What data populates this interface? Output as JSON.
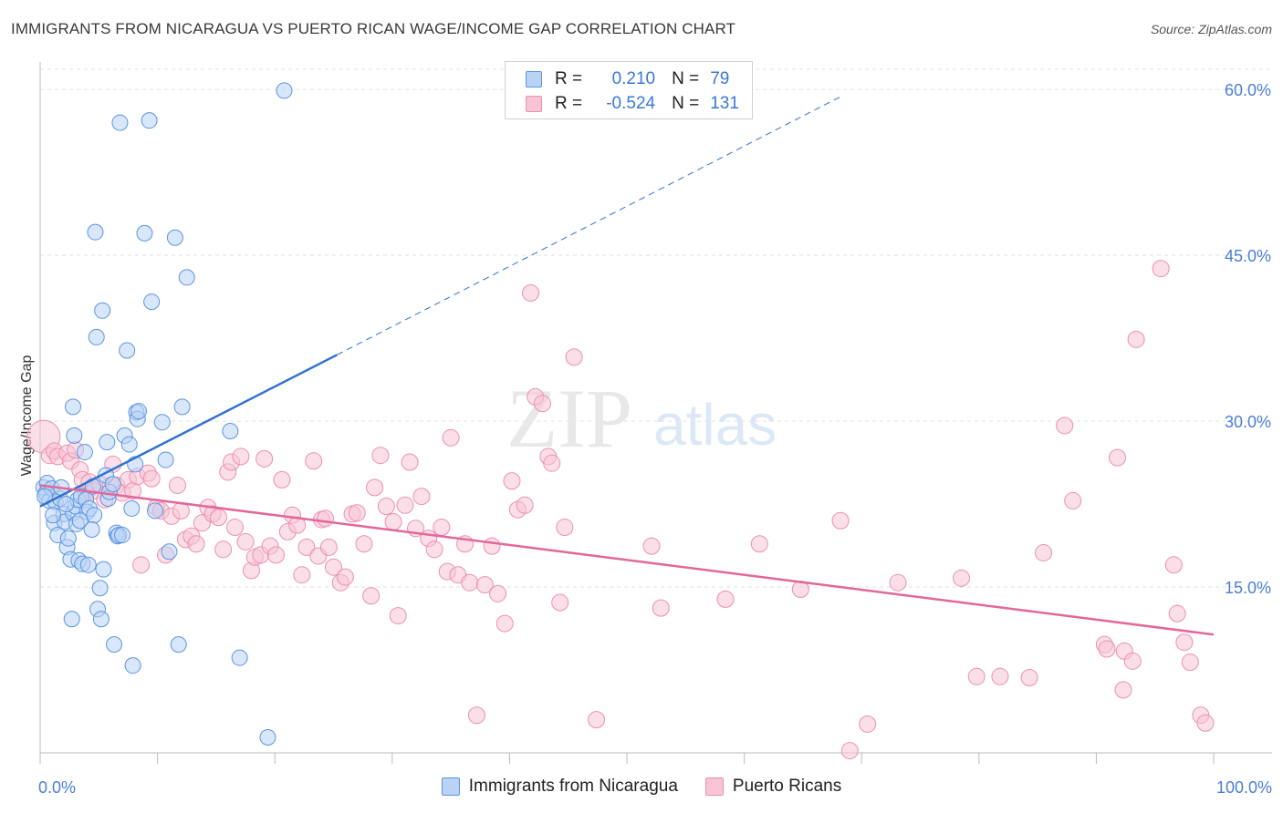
{
  "header": {
    "title": "IMMIGRANTS FROM NICARAGUA VS PUERTO RICAN WAGE/INCOME GAP CORRELATION CHART",
    "source": "Source: ZipAtlas.com"
  },
  "colors": {
    "blue": "#5b95e0",
    "blue_fill": "#b9d3f5",
    "blue_line": "#2f72d0",
    "pink": "#ec8fb0",
    "pink_fill": "#f7c4d6",
    "pink_line": "#e3679a",
    "tick": "#4a7fd6",
    "grid": "#e2e2e2"
  },
  "legend": {
    "rows": [
      {
        "r_label": "R =",
        "r_value": "0.210",
        "n_label": "N =",
        "n_value": "79"
      },
      {
        "r_label": "R =",
        "r_value": "-0.524",
        "n_label": "N =",
        "n_value": "131"
      }
    ]
  },
  "watermark": {
    "zip": "ZIP",
    "atlas": "atlas"
  },
  "chart_data": {
    "type": "scatter",
    "title": "IMMIGRANTS FROM NICARAGUA VS PUERTO RICAN WAGE/INCOME GAP CORRELATION CHART",
    "ylabel": "Wage/Income Gap",
    "xlabel": "",
    "xlim": [
      0,
      100
    ],
    "ylim": [
      0,
      61.5
    ],
    "x_tick_labels": [
      "0.0%",
      "100.0%"
    ],
    "y_ticks": [
      15,
      30,
      45,
      60
    ],
    "y_tick_labels": [
      "15.0%",
      "30.0%",
      "45.0%",
      "60.0%"
    ],
    "grid": true,
    "series": [
      {
        "name": "Immigrants from Nicaragua",
        "r": 0.21,
        "n": 79,
        "trend": {
          "x0": 0,
          "y0": 22.3,
          "x1": 25.3,
          "y1": 36.0,
          "dashed_to_x": 68.3,
          "dashed_to_y": 59.4
        },
        "points": [
          [
            0.3,
            24.0
          ],
          [
            0.5,
            23.5
          ],
          [
            0.6,
            24.4
          ],
          [
            0.8,
            22.8
          ],
          [
            1.0,
            23.9
          ],
          [
            1.2,
            20.8
          ],
          [
            1.3,
            22.7
          ],
          [
            1.5,
            19.7
          ],
          [
            1.7,
            23.0
          ],
          [
            1.8,
            24.0
          ],
          [
            2.0,
            21.6
          ],
          [
            2.1,
            20.9
          ],
          [
            2.3,
            18.6
          ],
          [
            2.4,
            19.4
          ],
          [
            2.6,
            17.5
          ],
          [
            2.7,
            12.1
          ],
          [
            2.8,
            21.7
          ],
          [
            3.0,
            22.3
          ],
          [
            3.1,
            20.7
          ],
          [
            3.2,
            22.9
          ],
          [
            3.3,
            17.4
          ],
          [
            2.9,
            28.7
          ],
          [
            2.8,
            31.3
          ],
          [
            3.5,
            23.2
          ],
          [
            3.6,
            17.1
          ],
          [
            3.8,
            27.2
          ],
          [
            3.9,
            22.9
          ],
          [
            4.0,
            21.8
          ],
          [
            4.1,
            17.0
          ],
          [
            4.2,
            22.1
          ],
          [
            4.5,
            24.1
          ],
          [
            4.6,
            21.5
          ],
          [
            4.7,
            47.1
          ],
          [
            4.8,
            37.6
          ],
          [
            4.9,
            13.0
          ],
          [
            5.1,
            14.9
          ],
          [
            5.2,
            12.1
          ],
          [
            5.3,
            40.0
          ],
          [
            5.4,
            16.6
          ],
          [
            5.6,
            25.1
          ],
          [
            5.7,
            28.1
          ],
          [
            5.8,
            23.0
          ],
          [
            5.9,
            23.6
          ],
          [
            6.2,
            24.3
          ],
          [
            6.3,
            9.8
          ],
          [
            6.5,
            19.9
          ],
          [
            6.6,
            19.6
          ],
          [
            6.7,
            19.7
          ],
          [
            6.8,
            57.0
          ],
          [
            7.0,
            19.7
          ],
          [
            7.2,
            28.7
          ],
          [
            7.4,
            36.4
          ],
          [
            7.6,
            27.9
          ],
          [
            7.8,
            22.1
          ],
          [
            7.9,
            7.9
          ],
          [
            8.1,
            26.1
          ],
          [
            8.2,
            30.8
          ],
          [
            8.3,
            30.2
          ],
          [
            8.4,
            30.9
          ],
          [
            8.9,
            47.0
          ],
          [
            9.3,
            57.2
          ],
          [
            9.5,
            40.8
          ],
          [
            9.8,
            21.9
          ],
          [
            10.4,
            29.9
          ],
          [
            10.7,
            26.5
          ],
          [
            11.0,
            18.2
          ],
          [
            11.5,
            46.6
          ],
          [
            11.8,
            9.8
          ],
          [
            12.1,
            31.3
          ],
          [
            12.5,
            43.0
          ],
          [
            16.2,
            29.1
          ],
          [
            17.0,
            8.6
          ],
          [
            19.4,
            1.4
          ],
          [
            20.8,
            59.9
          ],
          [
            0.4,
            23.2
          ],
          [
            1.1,
            21.5
          ],
          [
            2.2,
            22.5
          ],
          [
            3.4,
            21.0
          ],
          [
            4.4,
            20.2
          ]
        ]
      },
      {
        "name": "Puerto Ricans",
        "r": -0.524,
        "n": 131,
        "trend": {
          "x0": 0,
          "y0": 24.2,
          "x1": 100,
          "y1": 10.7
        },
        "points": [
          [
            0.3,
            28.6
          ],
          [
            0.8,
            26.9
          ],
          [
            1.2,
            27.3
          ],
          [
            1.5,
            26.8
          ],
          [
            2.3,
            27.1
          ],
          [
            2.6,
            26.4
          ],
          [
            3.0,
            27.4
          ],
          [
            3.4,
            25.6
          ],
          [
            3.6,
            24.7
          ],
          [
            3.9,
            23.5
          ],
          [
            4.2,
            24.5
          ],
          [
            4.6,
            23.7
          ],
          [
            5.1,
            24.3
          ],
          [
            5.5,
            22.9
          ],
          [
            6.0,
            24.2
          ],
          [
            6.2,
            26.1
          ],
          [
            6.5,
            24.2
          ],
          [
            7.0,
            23.5
          ],
          [
            7.5,
            24.7
          ],
          [
            7.9,
            23.7
          ],
          [
            8.3,
            25.0
          ],
          [
            8.6,
            17.0
          ],
          [
            9.2,
            25.3
          ],
          [
            9.5,
            24.8
          ],
          [
            9.9,
            22.2
          ],
          [
            10.3,
            21.9
          ],
          [
            10.7,
            17.9
          ],
          [
            11.2,
            21.4
          ],
          [
            11.7,
            24.2
          ],
          [
            12.0,
            21.9
          ],
          [
            12.4,
            19.3
          ],
          [
            12.9,
            19.6
          ],
          [
            13.3,
            18.9
          ],
          [
            13.8,
            20.8
          ],
          [
            14.3,
            22.2
          ],
          [
            14.7,
            21.6
          ],
          [
            15.2,
            21.3
          ],
          [
            15.6,
            18.4
          ],
          [
            16.0,
            25.4
          ],
          [
            16.3,
            26.3
          ],
          [
            16.6,
            20.4
          ],
          [
            17.1,
            26.8
          ],
          [
            17.5,
            19.1
          ],
          [
            18.0,
            16.5
          ],
          [
            18.3,
            17.7
          ],
          [
            18.8,
            17.9
          ],
          [
            19.1,
            26.6
          ],
          [
            19.6,
            18.7
          ],
          [
            20.1,
            17.9
          ],
          [
            20.6,
            24.7
          ],
          [
            21.1,
            20.0
          ],
          [
            21.5,
            21.5
          ],
          [
            21.9,
            20.6
          ],
          [
            22.3,
            16.1
          ],
          [
            22.7,
            18.6
          ],
          [
            23.3,
            26.4
          ],
          [
            23.7,
            17.8
          ],
          [
            24.0,
            21.1
          ],
          [
            24.3,
            21.2
          ],
          [
            24.6,
            18.6
          ],
          [
            25.0,
            16.8
          ],
          [
            25.6,
            15.4
          ],
          [
            26.0,
            15.9
          ],
          [
            26.6,
            21.6
          ],
          [
            27.0,
            21.7
          ],
          [
            27.6,
            18.9
          ],
          [
            28.2,
            14.2
          ],
          [
            28.5,
            24.0
          ],
          [
            29.0,
            26.9
          ],
          [
            29.5,
            22.3
          ],
          [
            30.1,
            20.9
          ],
          [
            30.5,
            12.4
          ],
          [
            31.1,
            22.4
          ],
          [
            31.5,
            26.3
          ],
          [
            32.0,
            20.3
          ],
          [
            32.5,
            23.2
          ],
          [
            33.1,
            19.4
          ],
          [
            33.6,
            18.4
          ],
          [
            34.2,
            20.4
          ],
          [
            34.7,
            16.4
          ],
          [
            35.0,
            28.5
          ],
          [
            35.6,
            16.1
          ],
          [
            36.2,
            18.9
          ],
          [
            36.6,
            15.4
          ],
          [
            37.2,
            3.4
          ],
          [
            37.9,
            15.2
          ],
          [
            38.5,
            18.7
          ],
          [
            39.0,
            14.4
          ],
          [
            39.6,
            11.7
          ],
          [
            40.2,
            24.6
          ],
          [
            40.7,
            22.0
          ],
          [
            41.3,
            22.4
          ],
          [
            42.2,
            32.2
          ],
          [
            42.8,
            31.6
          ],
          [
            43.3,
            26.8
          ],
          [
            43.6,
            26.2
          ],
          [
            44.3,
            13.6
          ],
          [
            44.7,
            20.4
          ],
          [
            45.5,
            35.8
          ],
          [
            41.8,
            41.6
          ],
          [
            47.4,
            3.0
          ],
          [
            52.1,
            18.7
          ],
          [
            52.9,
            13.1
          ],
          [
            58.4,
            13.9
          ],
          [
            61.3,
            18.9
          ],
          [
            64.8,
            14.8
          ],
          [
            68.2,
            21.0
          ],
          [
            69.0,
            0.2
          ],
          [
            70.5,
            2.6
          ],
          [
            73.1,
            15.4
          ],
          [
            78.5,
            15.8
          ],
          [
            79.8,
            6.9
          ],
          [
            81.8,
            6.9
          ],
          [
            84.3,
            6.8
          ],
          [
            85.5,
            18.1
          ],
          [
            87.3,
            29.6
          ],
          [
            88.0,
            22.8
          ],
          [
            90.7,
            9.8
          ],
          [
            90.9,
            9.4
          ],
          [
            91.8,
            26.7
          ],
          [
            92.3,
            5.7
          ],
          [
            92.4,
            9.2
          ],
          [
            93.1,
            8.3
          ],
          [
            93.4,
            37.4
          ],
          [
            95.5,
            43.8
          ],
          [
            96.6,
            17.0
          ],
          [
            96.9,
            12.6
          ],
          [
            97.5,
            10.0
          ],
          [
            98.0,
            8.2
          ],
          [
            98.9,
            3.4
          ],
          [
            99.3,
            2.7
          ]
        ]
      }
    ]
  },
  "bottom_legend": {
    "items": [
      {
        "label": "Immigrants from Nicaragua"
      },
      {
        "label": "Puerto Ricans"
      }
    ]
  }
}
